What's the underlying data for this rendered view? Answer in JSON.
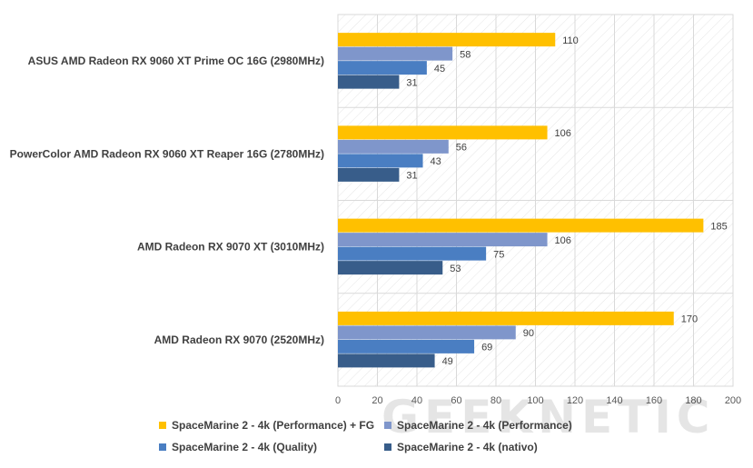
{
  "chart_data": {
    "type": "bar",
    "orientation": "horizontal",
    "categories": [
      "ASUS AMD Radeon RX 9060 XT Prime OC 16G (2980MHz)",
      "PowerColor AMD Radeon RX 9060 XT Reaper 16G (2780MHz)",
      "AMD Radeon RX 9070 XT (3010MHz)",
      "AMD Radeon RX 9070 (2520MHz)"
    ],
    "series": [
      {
        "name": "SpaceMarine 2 - 4k (Performance) + FG",
        "color": "#FFC000",
        "values": [
          110,
          106,
          185,
          170
        ]
      },
      {
        "name": "SpaceMarine 2 - 4k (Performance)",
        "color": "#7F96CB",
        "values": [
          58,
          56,
          106,
          90
        ]
      },
      {
        "name": "SpaceMarine 2 - 4k (Quality)",
        "color": "#4A7EC2",
        "values": [
          45,
          43,
          75,
          69
        ]
      },
      {
        "name": "SpaceMarine 2 - 4k (nativo)",
        "color": "#385D8A",
        "values": [
          31,
          31,
          53,
          49
        ]
      }
    ],
    "xlim": [
      0,
      200
    ],
    "xticks": [
      "0",
      "20",
      "40",
      "60",
      "80",
      "100",
      "120",
      "140",
      "160",
      "180",
      "200"
    ],
    "grid": true,
    "legend_position": "bottom",
    "title": "",
    "xlabel": "",
    "ylabel": ""
  },
  "watermark": "GEEKNETIC"
}
